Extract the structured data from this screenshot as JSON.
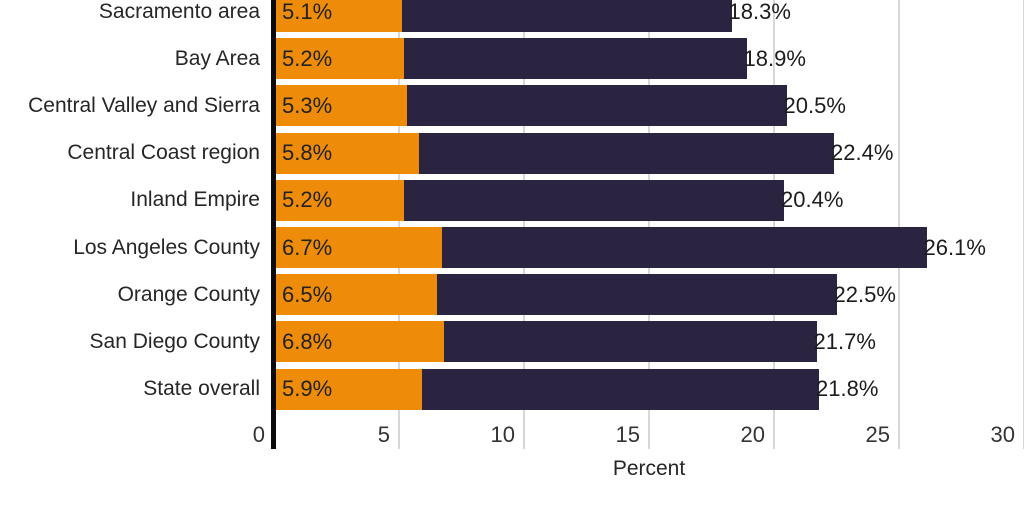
{
  "chart_data": {
    "type": "bar",
    "orientation": "horizontal",
    "title": "",
    "xlabel": "Percent",
    "xlim": [
      0,
      30
    ],
    "xticks": [
      0,
      5,
      10,
      15,
      20,
      25,
      30
    ],
    "grid": true,
    "legend_position": "none",
    "categories": [
      "Sacramento area",
      "Bay Area",
      "Central Valley and Sierra",
      "Central Coast region",
      "Inland Empire",
      "Los Angeles County",
      "Orange County",
      "San Diego County",
      "State overall"
    ],
    "series": [
      {
        "name": "primary",
        "color": "#ee8c0a",
        "values": [
          5.1,
          5.2,
          5.3,
          5.8,
          5.2,
          6.7,
          6.5,
          6.8,
          5.9
        ],
        "labels": [
          "5.1%",
          "5.2%",
          "5.3%",
          "5.8%",
          "5.2%",
          "6.7%",
          "6.5%",
          "6.8%",
          "5.9%"
        ]
      },
      {
        "name": "secondary-total",
        "color": "#2a2440",
        "values": [
          18.3,
          18.9,
          20.5,
          22.4,
          20.4,
          26.1,
          22.5,
          21.7,
          21.8
        ],
        "labels": [
          "18.3%",
          "18.9%",
          "20.5%",
          "22.4%",
          "20.4%",
          "26.1%",
          "22.5%",
          "21.7%",
          "21.8%"
        ]
      }
    ],
    "colors": {
      "gridline": "#d7d7d7",
      "axis_spine": "#0b0b0b",
      "category_text": "#262626",
      "value_text": "#1c1c1c"
    }
  }
}
